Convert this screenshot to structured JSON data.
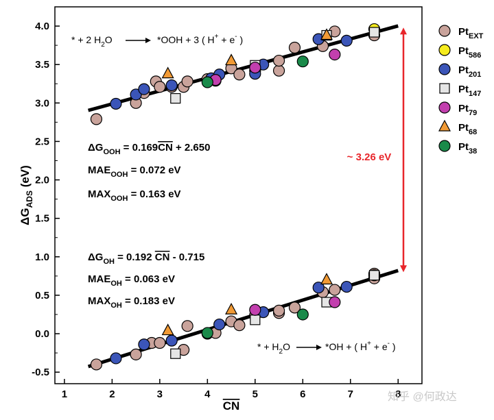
{
  "chart_data": {
    "type": "scatter",
    "xlabel": "CN",
    "ylabel": "ΔG",
    "ylabel_sub": "ADS",
    "ylabel_unit": "(eV)",
    "xlim": [
      0.8,
      8.5
    ],
    "ylim": [
      -0.65,
      4.25
    ],
    "xticks": [
      1,
      2,
      3,
      4,
      5,
      6,
      7,
      8
    ],
    "xtick_labels": [
      "1",
      "2",
      "3",
      "4",
      "5",
      "6",
      "7",
      "8"
    ],
    "yticks": [
      -0.5,
      0.0,
      0.5,
      1.0,
      1.5,
      2.0,
      2.5,
      3.0,
      3.5,
      4.0
    ],
    "ytick_labels": [
      "-0.5",
      "0.0",
      "0.5",
      "1.0",
      "1.5",
      "2.0",
      "2.5",
      "3.0",
      "3.5",
      "4.0"
    ],
    "grid": false,
    "legend_position": "outside-right",
    "fit_lines": [
      {
        "id": "ooh",
        "slope": 0.169,
        "intercept": 2.65,
        "x_range": [
          1.5,
          8.0
        ]
      },
      {
        "id": "oh",
        "slope": 0.192,
        "intercept": -0.715,
        "x_range": [
          1.5,
          8.0
        ]
      }
    ],
    "series": [
      {
        "name": "Pt",
        "sub": "EXT",
        "marker": "circle",
        "color": "#c9a39b",
        "points": [
          [
            1.67,
            2.79
          ],
          [
            2.5,
            3.0
          ],
          [
            2.67,
            3.13
          ],
          [
            2.92,
            3.28
          ],
          [
            3.0,
            3.21
          ],
          [
            3.25,
            3.21
          ],
          [
            3.5,
            3.21
          ],
          [
            3.58,
            3.28
          ],
          [
            4.0,
            3.31
          ],
          [
            4.17,
            3.29
          ],
          [
            4.5,
            3.45
          ],
          [
            4.67,
            3.37
          ],
          [
            5.0,
            3.42
          ],
          [
            5.5,
            3.42
          ],
          [
            5.5,
            3.55
          ],
          [
            5.83,
            3.72
          ],
          [
            6.42,
            3.74
          ],
          [
            6.67,
            3.93
          ],
          [
            7.5,
            3.88
          ],
          [
            1.67,
            -0.4
          ],
          [
            2.5,
            -0.27
          ],
          [
            2.83,
            -0.12
          ],
          [
            3.0,
            -0.12
          ],
          [
            3.5,
            -0.21
          ],
          [
            3.58,
            0.1
          ],
          [
            4.0,
            0.0
          ],
          [
            4.17,
            0.01
          ],
          [
            4.5,
            0.16
          ],
          [
            4.67,
            0.11
          ],
          [
            5.0,
            0.24
          ],
          [
            5.5,
            0.27
          ],
          [
            5.5,
            0.3
          ],
          [
            5.83,
            0.34
          ],
          [
            6.42,
            0.54
          ],
          [
            6.67,
            0.57
          ],
          [
            7.5,
            0.78
          ],
          [
            7.5,
            0.72
          ]
        ]
      },
      {
        "name": "Pt",
        "sub": "586",
        "marker": "circle",
        "color": "#f6ec1e",
        "points": [
          [
            7.5,
            3.96
          ],
          [
            7.5,
            0.76
          ]
        ]
      },
      {
        "name": "Pt",
        "sub": "201",
        "marker": "circle",
        "color": "#3b55b8",
        "points": [
          [
            2.08,
            2.99
          ],
          [
            2.5,
            3.11
          ],
          [
            2.67,
            3.18
          ],
          [
            3.25,
            3.23
          ],
          [
            4.08,
            3.32
          ],
          [
            4.25,
            3.37
          ],
          [
            5.0,
            3.38
          ],
          [
            5.17,
            3.5
          ],
          [
            6.33,
            3.83
          ],
          [
            6.92,
            3.81
          ],
          [
            2.08,
            -0.32
          ],
          [
            2.67,
            -0.14
          ],
          [
            3.25,
            -0.09
          ],
          [
            4.25,
            0.12
          ],
          [
            5.17,
            0.28
          ],
          [
            6.33,
            0.6
          ],
          [
            6.92,
            0.61
          ]
        ]
      },
      {
        "name": "Pt",
        "sub": "147",
        "marker": "square",
        "color": "#e5e5e5",
        "points": [
          [
            3.33,
            3.06
          ],
          [
            5.0,
            3.49
          ],
          [
            6.5,
            3.88
          ],
          [
            7.5,
            3.92
          ],
          [
            3.33,
            -0.26
          ],
          [
            5.0,
            0.18
          ],
          [
            6.5,
            0.41
          ],
          [
            7.5,
            0.76
          ]
        ]
      },
      {
        "name": "Pt",
        "sub": "79",
        "marker": "circle",
        "color": "#c23fae",
        "points": [
          [
            4.17,
            3.3
          ],
          [
            5.0,
            3.46
          ],
          [
            6.67,
            3.63
          ],
          [
            5.0,
            0.31
          ],
          [
            6.67,
            0.41
          ]
        ]
      },
      {
        "name": "Pt",
        "sub": "68",
        "marker": "triangle",
        "color": "#f19a35",
        "points": [
          [
            3.17,
            3.38
          ],
          [
            4.5,
            3.55
          ],
          [
            6.5,
            3.88
          ],
          [
            3.17,
            0.04
          ],
          [
            4.5,
            0.31
          ],
          [
            6.5,
            0.7
          ]
        ]
      },
      {
        "name": "Pt",
        "sub": "38",
        "marker": "circle",
        "color": "#1a8a4a",
        "points": [
          [
            4.0,
            3.27
          ],
          [
            6.0,
            3.54
          ],
          [
            4.0,
            0.01
          ],
          [
            6.0,
            0.25
          ]
        ]
      }
    ],
    "annotations": {
      "reaction_ooh": {
        "pre": "* + 2 H",
        "sub": "2",
        "post": "O",
        "product": "*OOH + 3 ( H",
        "plus": "+",
        "mid": " + e",
        "minus": "-",
        "end": " )"
      },
      "reaction_oh": {
        "pre": "* + H",
        "sub": "2",
        "post": "O",
        "product": "*OH + ( H",
        "plus": "+",
        "mid": " + e",
        "minus": "-",
        "end": " )"
      },
      "eq_ooh": {
        "lhs": "ΔG",
        "sub": "OOH",
        "eq": " = 0.169",
        "cn": "CN",
        "rest": " + 2.650"
      },
      "mae_ooh": {
        "label": "MAE",
        "sub": "OOH",
        "rest": " = 0.072 eV"
      },
      "max_ooh": {
        "label": "MAX",
        "sub": "OOH",
        "rest": " = 0.163 eV"
      },
      "eq_oh": {
        "lhs": "ΔG",
        "sub": "OH",
        "eq": " = 0.192 ",
        "cn": "CN",
        "rest": " - 0.715"
      },
      "mae_oh": {
        "label": "MAE",
        "sub": "OH",
        "rest": " = 0.063 eV"
      },
      "max_oh": {
        "label": "MAX",
        "sub": "OH",
        "rest": " = 0.183 eV"
      },
      "gap": "~ 3.26 eV",
      "watermark": "知乎 @何政达"
    },
    "colors": {
      "axis": "#000000",
      "fit_line": "#000000",
      "gap_arrow": "#e8262b"
    }
  }
}
